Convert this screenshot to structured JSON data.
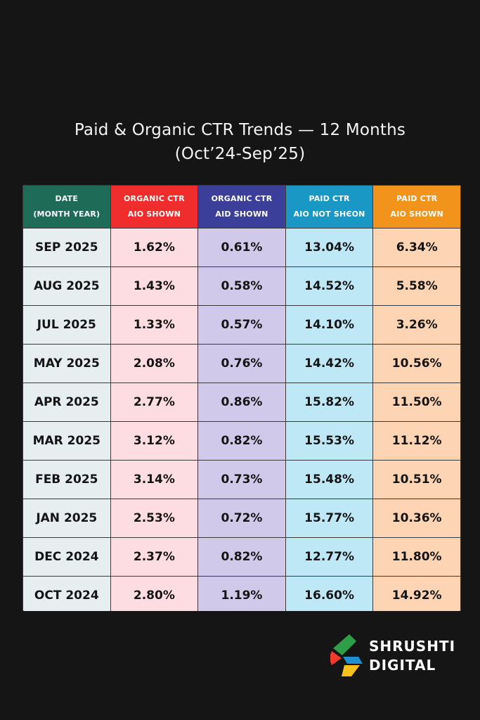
{
  "title": {
    "line1": "Paid & Organic CTR Trends — 12 Months",
    "line2": "(Oct’24-Sep’25)"
  },
  "chart_data": {
    "type": "table",
    "columns": [
      {
        "line1": "DATE",
        "line2": "(MONTH YEAR)",
        "color": "#1e6b57",
        "cell_color": "#e6eef0"
      },
      {
        "line1": "ORGANIC CTR",
        "line2": "AIO SHOWN",
        "color": "#ef2d2d",
        "cell_color": "#fddde1"
      },
      {
        "line1": "ORGANIC CTR",
        "line2": "AID SHOWN",
        "color": "#3b3f9a",
        "cell_color": "#d0c9ea"
      },
      {
        "line1": "PAID CTR",
        "line2": "AIO NOT SHЄON",
        "color": "#1a98c5",
        "cell_color": "#bfe8f7"
      },
      {
        "line1": "PAID CTR",
        "line2": "AIO SHOWN",
        "color": "#f2941b",
        "cell_color": "#fdd4b4"
      }
    ],
    "rows": [
      [
        "SEP 2025",
        "1.62%",
        "0.61%",
        "13.04%",
        "6.34%"
      ],
      [
        "AUG 2025",
        "1.43%",
        "0.58%",
        "14.52%",
        "5.58%"
      ],
      [
        "JUL 2025",
        "1.33%",
        "0.57%",
        "14.10%",
        "3.26%"
      ],
      [
        "MAY 2025",
        "2.08%",
        "0.76%",
        "14.42%",
        "10.56%"
      ],
      [
        "APR 2025",
        "2.77%",
        "0.86%",
        "15.82%",
        "11.50%"
      ],
      [
        "MAR 2025",
        "3.12%",
        "0.82%",
        "15.53%",
        "11.12%"
      ],
      [
        "FEB 2025",
        "3.14%",
        "0.73%",
        "15.48%",
        "10.51%"
      ],
      [
        "JAN 2025",
        "2.53%",
        "0.72%",
        "15.77%",
        "10.36%"
      ],
      [
        "DEC 2024",
        "2.37%",
        "0.82%",
        "12.77%",
        "11.80%"
      ],
      [
        "OCT 2024",
        "2.80%",
        "1.19%",
        "16.60%",
        "14.92%"
      ]
    ]
  },
  "brand": {
    "line1": "SHRUSHTI",
    "line2": "DIGITAL",
    "logo_colors": [
      "#2e9e49",
      "#ef3b2d",
      "#1f8fd1",
      "#f6c11b"
    ],
    "logo_icon": "pinwheel-logo-icon"
  }
}
